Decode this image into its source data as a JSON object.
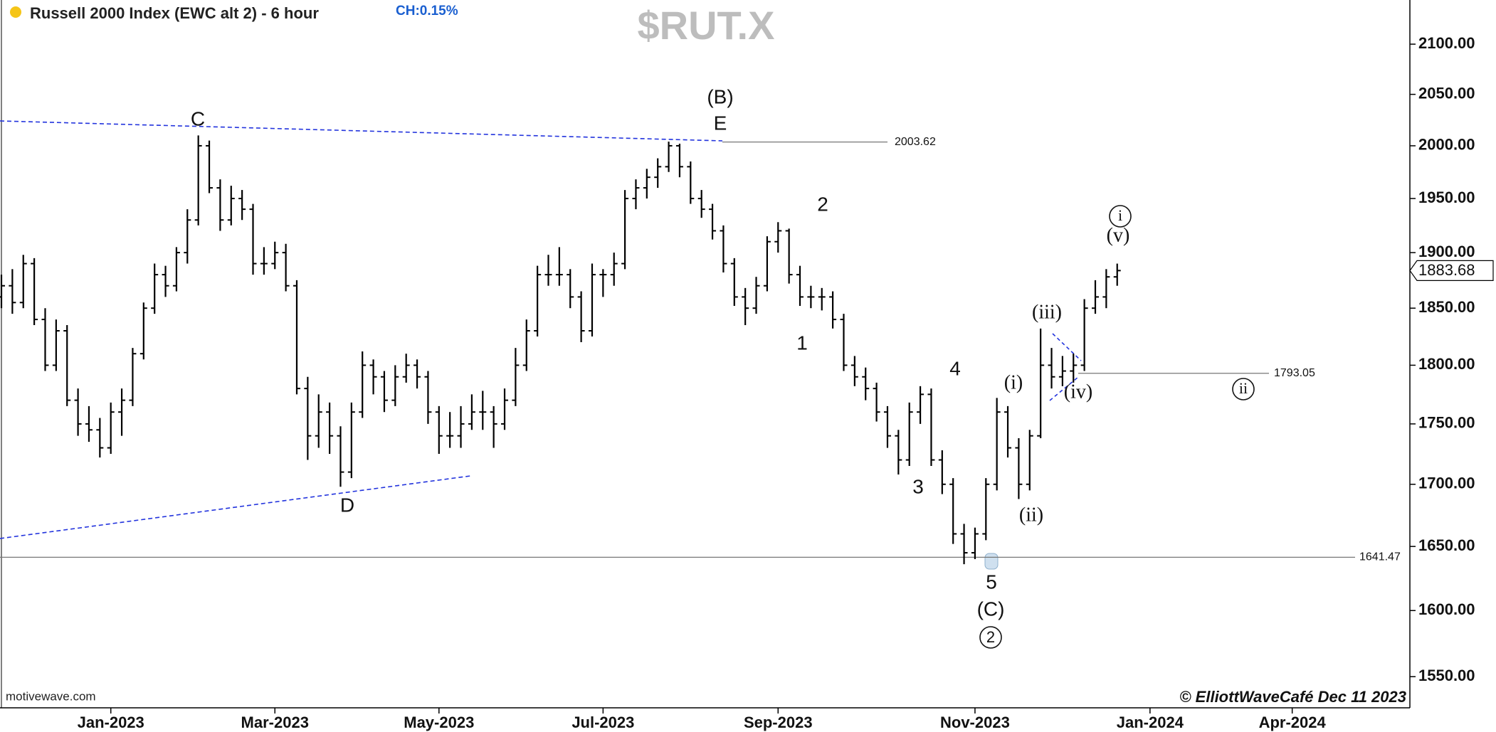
{
  "chart_data": {
    "type": "ohlc",
    "title": "Russell 2000 Index (EWC alt 2) - 6 hour",
    "change": "CH:0.15%",
    "symbol": "$RUT.X",
    "source": "motivewave.com",
    "copyright": "© ElliottWaveCafé Dec 11 2023",
    "log_scale": true,
    "color": "#000000",
    "categories": [
      null,
      null,
      null,
      null,
      null,
      null,
      null,
      null,
      null,
      null,
      "Jan-2023",
      null,
      null,
      null,
      null,
      null,
      null,
      null,
      null,
      null,
      null,
      null,
      null,
      null,
      null,
      "Mar-2023",
      null,
      null,
      null,
      null,
      null,
      null,
      null,
      null,
      null,
      null,
      null,
      null,
      null,
      null,
      "May-2023",
      null,
      null,
      null,
      null,
      null,
      null,
      null,
      null,
      null,
      null,
      null,
      null,
      null,
      null,
      "Jul-2023",
      null,
      null,
      null,
      null,
      null,
      null,
      null,
      null,
      null,
      null,
      null,
      null,
      null,
      null,
      null,
      "Sep-2023",
      null,
      null,
      null,
      null,
      null,
      null,
      null,
      null,
      null,
      null,
      null,
      null,
      null,
      null,
      null,
      null,
      null,
      "Nov-2023",
      null,
      null,
      null,
      null,
      null,
      null,
      null,
      null,
      null,
      null,
      null,
      null,
      null,
      null,
      null,
      "Jan-2024",
      null,
      null,
      null,
      null,
      null,
      null,
      null,
      null,
      null,
      null,
      null,
      null,
      "Apr-2024",
      null,
      null,
      null,
      null,
      null,
      null,
      null,
      null,
      null,
      null,
      null
    ],
    "open": [
      1860,
      1870,
      1855,
      1890,
      1840,
      1800,
      1830,
      1770,
      1750,
      1745,
      1730,
      1760,
      1770,
      1810,
      1850,
      1880,
      1870,
      1900,
      1930,
      2000,
      1960,
      1930,
      1950,
      1940,
      1890,
      1890,
      1900,
      1870,
      1780,
      1740,
      1760,
      1740,
      1710,
      1760,
      1800,
      1790,
      1770,
      1790,
      1800,
      1790,
      1760,
      1740,
      1740,
      1750,
      1760,
      1760,
      1750,
      1770,
      1800,
      1830,
      1880,
      1880,
      1880,
      1860,
      1830,
      1880,
      1880,
      1890,
      1950,
      1960,
      1970,
      1980,
      2000,
      1980,
      1950,
      1940,
      1920,
      1890,
      1860,
      1850,
      1870,
      1910,
      1920,
      1880,
      1860,
      1860,
      1860,
      1840,
      1800,
      1790,
      1780,
      1760,
      1740,
      1720,
      1760,
      1775,
      1720,
      1700,
      1660,
      1645,
      1660,
      1700,
      1760,
      1730,
      1700,
      1740,
      1800,
      1790,
      1795,
      1800,
      1850,
      1860,
      1878,
      null,
      null,
      null,
      null,
      null,
      null,
      null,
      null,
      null,
      null,
      null,
      null,
      null,
      null,
      null,
      null,
      null,
      null,
      null,
      null,
      null,
      null,
      null,
      null,
      null,
      null,
      null
    ],
    "high": [
      1880,
      1885,
      1898,
      1895,
      1850,
      1840,
      1835,
      1780,
      1765,
      1755,
      1768,
      1780,
      1815,
      1855,
      1890,
      1888,
      1905,
      1940,
      2010,
      2005,
      1968,
      1962,
      1958,
      1945,
      1905,
      1910,
      1908,
      1875,
      1790,
      1775,
      1768,
      1748,
      1768,
      1812,
      1805,
      1795,
      1800,
      1810,
      1805,
      1795,
      1765,
      1760,
      1765,
      1775,
      1778,
      1765,
      1780,
      1815,
      1840,
      1888,
      1898,
      1905,
      1885,
      1865,
      1890,
      1885,
      1900,
      1958,
      1968,
      1978,
      1988,
      2004,
      2002,
      1985,
      1958,
      1945,
      1925,
      1895,
      1868,
      1878,
      1915,
      1928,
      1922,
      1888,
      1870,
      1868,
      1865,
      1845,
      1808,
      1798,
      1785,
      1765,
      1745,
      1768,
      1782,
      1780,
      1728,
      1705,
      1668,
      1665,
      1705,
      1772,
      1765,
      1738,
      1745,
      1832,
      1815,
      1808,
      1810,
      1858,
      1875,
      1885,
      1890,
      null,
      null,
      null,
      null,
      null,
      null,
      null,
      null,
      null,
      null,
      null,
      null,
      null,
      null,
      null,
      null,
      null,
      null,
      null,
      null,
      null,
      null,
      null,
      null,
      null,
      null,
      null
    ],
    "low": [
      1850,
      1845,
      1850,
      1835,
      1795,
      1795,
      1765,
      1740,
      1735,
      1722,
      1725,
      1740,
      1765,
      1805,
      1845,
      1860,
      1865,
      1890,
      1925,
      1955,
      1920,
      1925,
      1930,
      1880,
      1880,
      1885,
      1865,
      1775,
      1720,
      1730,
      1725,
      1698,
      1705,
      1755,
      1775,
      1760,
      1765,
      1785,
      1780,
      1750,
      1725,
      1730,
      1730,
      1745,
      1745,
      1730,
      1745,
      1765,
      1795,
      1825,
      1870,
      1870,
      1850,
      1820,
      1825,
      1860,
      1870,
      1885,
      1940,
      1950,
      1960,
      1975,
      1970,
      1945,
      1932,
      1912,
      1882,
      1852,
      1835,
      1845,
      1865,
      1900,
      1872,
      1852,
      1850,
      1848,
      1832,
      1795,
      1782,
      1770,
      1752,
      1730,
      1708,
      1715,
      1750,
      1715,
      1692,
      1652,
      1636,
      1640,
      1655,
      1695,
      1722,
      1688,
      1695,
      1738,
      1780,
      1782,
      1785,
      1795,
      1845,
      1850,
      1870,
      null,
      null,
      null,
      null,
      null,
      null,
      null,
      null,
      null,
      null,
      null,
      null,
      null,
      null,
      null,
      null,
      null,
      null,
      null,
      null,
      null,
      null,
      null,
      null,
      null,
      null,
      null
    ],
    "close": [
      1870,
      1855,
      1890,
      1840,
      1800,
      1830,
      1770,
      1750,
      1745,
      1730,
      1760,
      1770,
      1810,
      1850,
      1880,
      1870,
      1900,
      1930,
      2000,
      1960,
      1930,
      1950,
      1940,
      1890,
      1890,
      1900,
      1870,
      1780,
      1740,
      1760,
      1740,
      1710,
      1760,
      1800,
      1790,
      1770,
      1790,
      1800,
      1790,
      1760,
      1740,
      1740,
      1750,
      1760,
      1760,
      1750,
      1770,
      1800,
      1830,
      1880,
      1880,
      1880,
      1860,
      1830,
      1880,
      1880,
      1890,
      1950,
      1960,
      1970,
      1980,
      2000,
      1980,
      1950,
      1940,
      1920,
      1890,
      1860,
      1850,
      1870,
      1910,
      1920,
      1880,
      1860,
      1860,
      1860,
      1840,
      1800,
      1790,
      1780,
      1760,
      1740,
      1720,
      1760,
      1775,
      1720,
      1700,
      1660,
      1645,
      1660,
      1700,
      1760,
      1730,
      1700,
      1740,
      1800,
      1790,
      1795,
      1800,
      1850,
      1860,
      1878,
      1883.68,
      null,
      null,
      null,
      null,
      null,
      null,
      null,
      null,
      null,
      null,
      null,
      null,
      null,
      null,
      null,
      null,
      null,
      null,
      null,
      null,
      null,
      null,
      null,
      null,
      null,
      null,
      null
    ],
    "ylim": [
      1527,
      2145
    ],
    "yticks": [
      {
        "value": 1550,
        "label": "1550.00"
      },
      {
        "value": 1600,
        "label": "1600.00"
      },
      {
        "value": 1650,
        "label": "1650.00"
      },
      {
        "value": 1700,
        "label": "1700.00"
      },
      {
        "value": 1750,
        "label": "1750.00"
      },
      {
        "value": 1800,
        "label": "1800.00"
      },
      {
        "value": 1850,
        "label": "1850.00"
      },
      {
        "value": 1900,
        "label": "1900.00"
      },
      {
        "value": 1950,
        "label": "1950.00"
      },
      {
        "value": 2000,
        "label": "2000.00"
      },
      {
        "value": 2050,
        "label": "2050.00"
      },
      {
        "value": 2100,
        "label": "2100.00"
      }
    ],
    "levels": [
      2003.62,
      1641.47,
      1793.05
    ],
    "annotations": [
      {
        "text": "C"
      },
      {
        "text": "(B)"
      },
      {
        "text": "E"
      },
      {
        "text": "D"
      },
      {
        "text": "2"
      },
      {
        "text": "1"
      },
      {
        "text": "3"
      },
      {
        "text": "4"
      },
      {
        "text": "5"
      },
      {
        "text": "(C)"
      },
      {
        "text": "2",
        "circled": true
      },
      {
        "text": "(i)"
      },
      {
        "text": "(ii)"
      },
      {
        "text": "(iii)"
      },
      {
        "text": "(iv)"
      },
      {
        "text": "(v)"
      },
      {
        "text": "i",
        "circled": true
      },
      {
        "text": "ii",
        "circled": true
      }
    ]
  }
}
